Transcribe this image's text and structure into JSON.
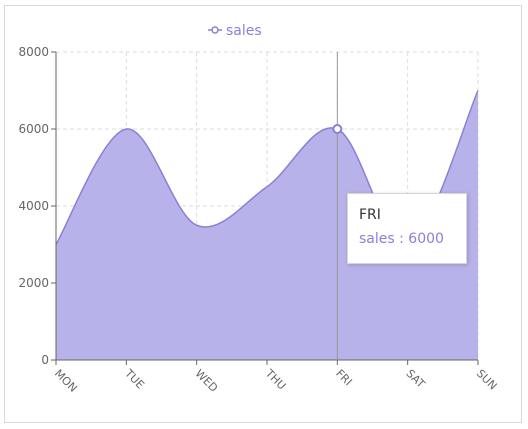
{
  "colors": {
    "series": "#8a80d6",
    "area_fill": "#b7b3ea",
    "axis": "#666666",
    "grid": "#dddddd",
    "text": "#333333"
  },
  "chart_data": {
    "type": "area",
    "categories": [
      "MON",
      "TUE",
      "WED",
      "THU",
      "FRI",
      "SAT",
      "SUN"
    ],
    "series": [
      {
        "name": "sales",
        "values": [
          3000,
          6000,
          3500,
          4500,
          6000,
          3000,
          7000
        ]
      }
    ],
    "ylim": [
      0,
      8000
    ],
    "yticks": [
      "0",
      "2000",
      "4000",
      "6000",
      "8000"
    ],
    "grid": true,
    "legend_position": "top-left",
    "smooth": true,
    "tooltip": {
      "category": "FRI",
      "label": "sales : 6000"
    }
  }
}
